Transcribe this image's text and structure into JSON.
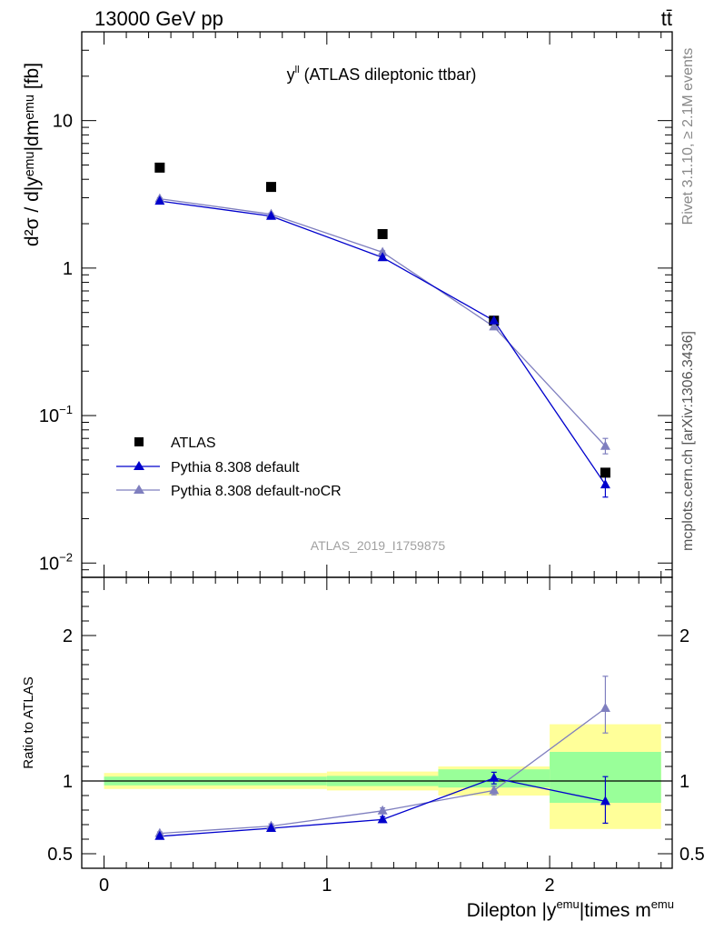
{
  "header": {
    "energy_label": "13000 GeV pp",
    "process_label": "tt̄"
  },
  "side_labels": {
    "rivet": "Rivet 3.1.10, ≥ 2.1M events",
    "mcplots": "mcplots.cern.ch [arXiv:1306.3436]"
  },
  "colors": {
    "data": "#000000",
    "default": "#0000cc",
    "nocr": "#7f7fbf",
    "band_inner": "#99ff99",
    "band_outer": "#ffff99"
  },
  "chart_data": [
    {
      "type": "scatter",
      "title_main": "y",
      "title_sup": "ll",
      "title_rest": " (ATLAS dileptonic ttbar)",
      "ylabel": "d²σ / d|yᵉᵐᵘ|dmᵉᵐᵘ [fb]",
      "watermark": "ATLAS_2019_I1759875",
      "yscale": "log",
      "ylim": [
        0.008,
        40
      ],
      "xlim": [
        -0.1,
        2.55
      ],
      "yticks": [
        {
          "v": 0.01,
          "base": "10",
          "exp": "−2"
        },
        {
          "v": 0.1,
          "base": "10",
          "exp": "−1"
        },
        {
          "v": 1,
          "base": "1",
          "exp": ""
        },
        {
          "v": 10,
          "base": "10",
          "exp": ""
        }
      ],
      "legend_position": "lower-left",
      "series": [
        {
          "name": "ATLAS",
          "marker": "square",
          "x": [
            0.25,
            0.75,
            1.25,
            1.75,
            2.25
          ],
          "y": [
            4.8,
            3.55,
            1.7,
            0.44,
            0.041
          ]
        },
        {
          "name": "Pythia 8.308 default",
          "marker": "triangle",
          "x": [
            0.25,
            0.75,
            1.25,
            1.75,
            2.25
          ],
          "y": [
            2.85,
            2.25,
            1.18,
            0.44,
            0.034
          ],
          "err_lo": [
            2.8,
            2.21,
            1.15,
            0.43,
            0.028
          ],
          "err_hi": [
            2.9,
            2.29,
            1.21,
            0.45,
            0.04
          ]
        },
        {
          "name": "Pythia 8.308 default-noCR",
          "marker": "triangle",
          "x": [
            0.25,
            0.75,
            1.25,
            1.75,
            2.25
          ],
          "y": [
            2.95,
            2.32,
            1.28,
            0.4,
            0.062
          ],
          "err_lo": [
            2.9,
            2.28,
            1.25,
            0.39,
            0.055
          ],
          "err_hi": [
            3.0,
            2.36,
            1.31,
            0.41,
            0.07
          ]
        }
      ]
    },
    {
      "type": "scatter",
      "ylabel": "Ratio to ATLAS",
      "xlabel_main": "Dilepton |y",
      "xlabel_sup1": "emu",
      "xlabel_mid": "|times m",
      "xlabel_sup2": "emu",
      "ylim": [
        0.4,
        2.4
      ],
      "xlim": [
        -0.1,
        2.55
      ],
      "xticks": [
        0,
        1,
        2
      ],
      "yticks": [
        0.5,
        1,
        2
      ],
      "bands": [
        {
          "x0": 0,
          "x1": 1,
          "inner": [
            0.97,
            1.03
          ],
          "outer": [
            0.945,
            1.055
          ]
        },
        {
          "x0": 1,
          "x1": 1.5,
          "inner": [
            0.965,
            1.035
          ],
          "outer": [
            0.935,
            1.065
          ]
        },
        {
          "x0": 1.5,
          "x1": 2,
          "inner": [
            0.955,
            1.08
          ],
          "outer": [
            0.9,
            1.1
          ]
        },
        {
          "x0": 2,
          "x1": 2.5,
          "inner": [
            0.85,
            1.2
          ],
          "outer": [
            0.67,
            1.39
          ]
        }
      ],
      "series": [
        {
          "name": "Pythia 8.308 default",
          "x": [
            0.25,
            0.75,
            1.25,
            1.75,
            2.25
          ],
          "y": [
            0.62,
            0.675,
            0.735,
            1.02,
            0.86
          ],
          "err_lo": [
            0.61,
            0.665,
            0.715,
            0.98,
            0.71
          ],
          "err_hi": [
            0.63,
            0.685,
            0.755,
            1.06,
            1.03
          ]
        },
        {
          "name": "Pythia 8.308 default-noCR",
          "x": [
            0.25,
            0.75,
            1.25,
            1.75,
            2.25
          ],
          "y": [
            0.64,
            0.69,
            0.795,
            0.935,
            1.5
          ],
          "err_lo": [
            0.63,
            0.675,
            0.775,
            0.905,
            1.33
          ],
          "err_hi": [
            0.65,
            0.705,
            0.815,
            0.965,
            1.72
          ]
        }
      ]
    }
  ]
}
